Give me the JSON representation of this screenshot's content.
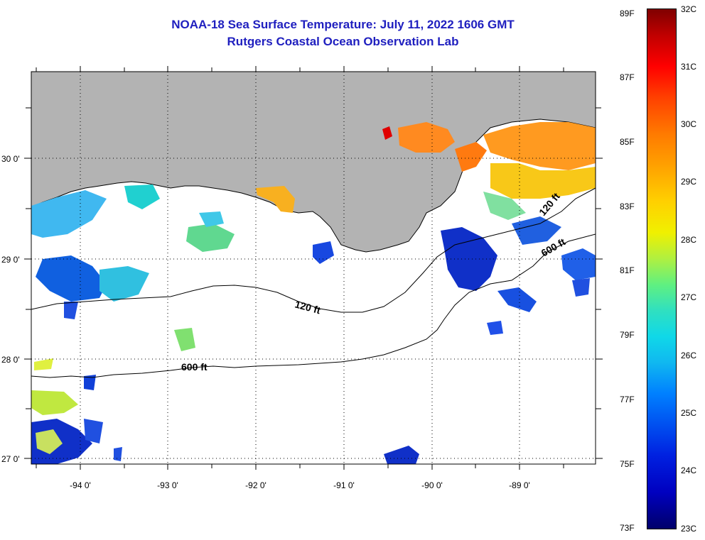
{
  "header": {
    "title_line1": "NOAA-18 Sea Surface Temperature:  July 11, 2022 1606 GMT",
    "title_line2": "Rutgers Coastal Ocean Observation Lab"
  },
  "map": {
    "lat_labels": [
      "30 0'",
      "29 0'",
      "28 0'",
      "27 0'"
    ],
    "lon_labels": [
      "-94 0'",
      "-93 0'",
      "-92 0'",
      "-91 0'",
      "-90 0'",
      "-89 0'"
    ],
    "contours": [
      {
        "label": "120 ft"
      },
      {
        "label": "600 ft"
      },
      {
        "label": "120 ft"
      },
      {
        "label": "600 ft"
      }
    ],
    "colors": {
      "land": "#b3b3b3",
      "water": "#ffffff",
      "contour": "#000000",
      "grid": "#000000"
    }
  },
  "colorbar": {
    "fahrenheit_labels": [
      "89F",
      "87F",
      "85F",
      "83F",
      "81F",
      "79F",
      "77F",
      "75F",
      "73F"
    ],
    "celsius_labels": [
      "32C",
      "31C",
      "30C",
      "29C",
      "28C",
      "27C",
      "26C",
      "25C",
      "24C",
      "23C"
    ]
  }
}
